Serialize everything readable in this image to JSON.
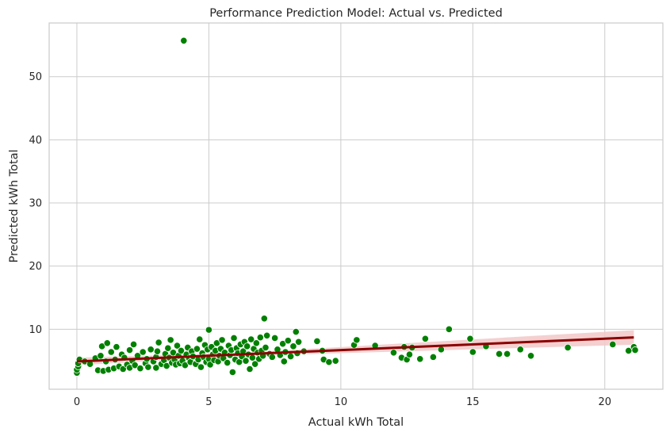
{
  "chart_data": {
    "type": "scatter",
    "title": "Performance Prediction Model: Actual vs. Predicted",
    "xlabel": "Actual kWh Total",
    "ylabel": "Predicted kWh Total",
    "xlim": [
      -1.05,
      22.2
    ],
    "ylim": [
      0.5,
      58.5
    ],
    "xticks": [
      0,
      5,
      10,
      15,
      20
    ],
    "yticks": [
      10,
      20,
      30,
      40,
      50
    ],
    "grid": true,
    "points_color": "#008000",
    "points_edge": "#ffffff",
    "regression_color": "#8b0000",
    "confidence_band_color": "#f2c8c8",
    "regression_line": {
      "x": [
        0,
        21.1
      ],
      "y": [
        4.9,
        8.7
      ]
    },
    "points": [
      {
        "x": 0.0,
        "y": 3.1
      },
      {
        "x": 0.0,
        "y": 3.6
      },
      {
        "x": 0.05,
        "y": 4.1
      },
      {
        "x": 0.05,
        "y": 4.6
      },
      {
        "x": 0.1,
        "y": 5.2
      },
      {
        "x": 0.3,
        "y": 4.9
      },
      {
        "x": 0.5,
        "y": 4.5
      },
      {
        "x": 0.7,
        "y": 5.4
      },
      {
        "x": 0.8,
        "y": 3.5
      },
      {
        "x": 0.9,
        "y": 5.8
      },
      {
        "x": 0.95,
        "y": 7.3
      },
      {
        "x": 1.0,
        "y": 3.4
      },
      {
        "x": 1.1,
        "y": 4.9
      },
      {
        "x": 1.15,
        "y": 7.8
      },
      {
        "x": 1.2,
        "y": 3.6
      },
      {
        "x": 1.3,
        "y": 6.4
      },
      {
        "x": 1.4,
        "y": 3.8
      },
      {
        "x": 1.45,
        "y": 5.2
      },
      {
        "x": 1.5,
        "y": 7.2
      },
      {
        "x": 1.6,
        "y": 4.1
      },
      {
        "x": 1.7,
        "y": 6.0
      },
      {
        "x": 1.75,
        "y": 3.7
      },
      {
        "x": 1.8,
        "y": 5.5
      },
      {
        "x": 1.9,
        "y": 4.4
      },
      {
        "x": 2.0,
        "y": 6.7
      },
      {
        "x": 2.0,
        "y": 3.9
      },
      {
        "x": 2.1,
        "y": 5.0
      },
      {
        "x": 2.15,
        "y": 7.6
      },
      {
        "x": 2.2,
        "y": 4.3
      },
      {
        "x": 2.3,
        "y": 5.8
      },
      {
        "x": 2.4,
        "y": 3.8
      },
      {
        "x": 2.5,
        "y": 6.4
      },
      {
        "x": 2.6,
        "y": 4.6
      },
      {
        "x": 2.65,
        "y": 5.3
      },
      {
        "x": 2.7,
        "y": 4.0
      },
      {
        "x": 2.8,
        "y": 6.8
      },
      {
        "x": 2.9,
        "y": 4.9
      },
      {
        "x": 3.0,
        "y": 3.9
      },
      {
        "x": 3.0,
        "y": 5.6
      },
      {
        "x": 3.05,
        "y": 6.5
      },
      {
        "x": 3.1,
        "y": 7.9
      },
      {
        "x": 3.2,
        "y": 4.5
      },
      {
        "x": 3.3,
        "y": 5.1
      },
      {
        "x": 3.35,
        "y": 6.1
      },
      {
        "x": 3.4,
        "y": 4.2
      },
      {
        "x": 3.45,
        "y": 7.0
      },
      {
        "x": 3.5,
        "y": 5.5
      },
      {
        "x": 3.55,
        "y": 8.3
      },
      {
        "x": 3.6,
        "y": 4.7
      },
      {
        "x": 3.65,
        "y": 6.3
      },
      {
        "x": 3.7,
        "y": 5.2
      },
      {
        "x": 3.75,
        "y": 4.4
      },
      {
        "x": 3.8,
        "y": 7.4
      },
      {
        "x": 3.85,
        "y": 5.8
      },
      {
        "x": 3.9,
        "y": 4.6
      },
      {
        "x": 3.95,
        "y": 6.6
      },
      {
        "x": 4.0,
        "y": 5.0
      },
      {
        "x": 4.05,
        "y": 55.7
      },
      {
        "x": 4.1,
        "y": 4.3
      },
      {
        "x": 4.15,
        "y": 6.0
      },
      {
        "x": 4.2,
        "y": 7.1
      },
      {
        "x": 4.25,
        "y": 5.4
      },
      {
        "x": 4.3,
        "y": 4.8
      },
      {
        "x": 4.35,
        "y": 6.5
      },
      {
        "x": 4.4,
        "y": 5.7
      },
      {
        "x": 4.5,
        "y": 4.5
      },
      {
        "x": 4.55,
        "y": 6.9
      },
      {
        "x": 4.6,
        "y": 5.2
      },
      {
        "x": 4.65,
        "y": 8.4
      },
      {
        "x": 4.7,
        "y": 4.0
      },
      {
        "x": 4.75,
        "y": 6.2
      },
      {
        "x": 4.8,
        "y": 5.6
      },
      {
        "x": 4.85,
        "y": 7.5
      },
      {
        "x": 4.9,
        "y": 4.8
      },
      {
        "x": 4.95,
        "y": 6.8
      },
      {
        "x": 5.0,
        "y": 5.3
      },
      {
        "x": 5.0,
        "y": 9.9
      },
      {
        "x": 5.05,
        "y": 4.4
      },
      {
        "x": 5.1,
        "y": 7.2
      },
      {
        "x": 5.15,
        "y": 6.0
      },
      {
        "x": 5.2,
        "y": 5.1
      },
      {
        "x": 5.25,
        "y": 6.6
      },
      {
        "x": 5.3,
        "y": 7.8
      },
      {
        "x": 5.35,
        "y": 4.9
      },
      {
        "x": 5.4,
        "y": 5.8
      },
      {
        "x": 5.45,
        "y": 6.9
      },
      {
        "x": 5.5,
        "y": 8.3
      },
      {
        "x": 5.55,
        "y": 5.4
      },
      {
        "x": 5.6,
        "y": 6.3
      },
      {
        "x": 5.7,
        "y": 4.7
      },
      {
        "x": 5.75,
        "y": 7.4
      },
      {
        "x": 5.8,
        "y": 5.9
      },
      {
        "x": 5.85,
        "y": 6.7
      },
      {
        "x": 5.9,
        "y": 3.2
      },
      {
        "x": 5.95,
        "y": 8.6
      },
      {
        "x": 6.0,
        "y": 5.2
      },
      {
        "x": 6.05,
        "y": 7.0
      },
      {
        "x": 6.1,
        "y": 6.2
      },
      {
        "x": 6.15,
        "y": 4.8
      },
      {
        "x": 6.2,
        "y": 7.6
      },
      {
        "x": 6.25,
        "y": 5.7
      },
      {
        "x": 6.3,
        "y": 6.5
      },
      {
        "x": 6.35,
        "y": 8.0
      },
      {
        "x": 6.4,
        "y": 5.0
      },
      {
        "x": 6.45,
        "y": 7.3
      },
      {
        "x": 6.5,
        "y": 6.0
      },
      {
        "x": 6.55,
        "y": 3.7
      },
      {
        "x": 6.6,
        "y": 8.4
      },
      {
        "x": 6.65,
        "y": 5.5
      },
      {
        "x": 6.7,
        "y": 6.9
      },
      {
        "x": 6.75,
        "y": 4.5
      },
      {
        "x": 6.8,
        "y": 7.8
      },
      {
        "x": 6.85,
        "y": 6.3
      },
      {
        "x": 6.9,
        "y": 5.3
      },
      {
        "x": 6.95,
        "y": 8.7
      },
      {
        "x": 7.0,
        "y": 6.6
      },
      {
        "x": 7.05,
        "y": 5.8
      },
      {
        "x": 7.1,
        "y": 11.7
      },
      {
        "x": 7.15,
        "y": 7.1
      },
      {
        "x": 7.2,
        "y": 9.0
      },
      {
        "x": 7.3,
        "y": 6.1
      },
      {
        "x": 7.4,
        "y": 5.6
      },
      {
        "x": 7.5,
        "y": 8.6
      },
      {
        "x": 7.6,
        "y": 6.8
      },
      {
        "x": 7.7,
        "y": 5.9
      },
      {
        "x": 7.8,
        "y": 7.7
      },
      {
        "x": 7.85,
        "y": 4.9
      },
      {
        "x": 7.9,
        "y": 6.4
      },
      {
        "x": 8.0,
        "y": 8.2
      },
      {
        "x": 8.1,
        "y": 5.7
      },
      {
        "x": 8.2,
        "y": 7.3
      },
      {
        "x": 8.3,
        "y": 9.6
      },
      {
        "x": 8.35,
        "y": 6.2
      },
      {
        "x": 8.4,
        "y": 8.0
      },
      {
        "x": 8.6,
        "y": 6.5
      },
      {
        "x": 9.1,
        "y": 8.1
      },
      {
        "x": 9.3,
        "y": 6.6
      },
      {
        "x": 9.35,
        "y": 5.2
      },
      {
        "x": 9.55,
        "y": 4.8
      },
      {
        "x": 9.8,
        "y": 5.0
      },
      {
        "x": 10.5,
        "y": 7.5
      },
      {
        "x": 10.6,
        "y": 8.3
      },
      {
        "x": 11.3,
        "y": 7.4
      },
      {
        "x": 12.0,
        "y": 6.3
      },
      {
        "x": 12.3,
        "y": 5.5
      },
      {
        "x": 12.4,
        "y": 7.2
      },
      {
        "x": 12.5,
        "y": 5.2
      },
      {
        "x": 12.6,
        "y": 6.0
      },
      {
        "x": 12.7,
        "y": 7.1
      },
      {
        "x": 13.0,
        "y": 5.3
      },
      {
        "x": 13.2,
        "y": 8.5
      },
      {
        "x": 13.5,
        "y": 5.6
      },
      {
        "x": 13.8,
        "y": 6.8
      },
      {
        "x": 14.1,
        "y": 10.0
      },
      {
        "x": 14.9,
        "y": 8.5
      },
      {
        "x": 15.0,
        "y": 6.4
      },
      {
        "x": 15.5,
        "y": 7.3
      },
      {
        "x": 16.0,
        "y": 6.1
      },
      {
        "x": 16.3,
        "y": 6.1
      },
      {
        "x": 16.8,
        "y": 6.8
      },
      {
        "x": 17.2,
        "y": 5.8
      },
      {
        "x": 18.6,
        "y": 7.1
      },
      {
        "x": 20.3,
        "y": 7.6
      },
      {
        "x": 20.9,
        "y": 6.6
      },
      {
        "x": 21.1,
        "y": 7.2
      },
      {
        "x": 21.15,
        "y": 6.7
      }
    ]
  }
}
